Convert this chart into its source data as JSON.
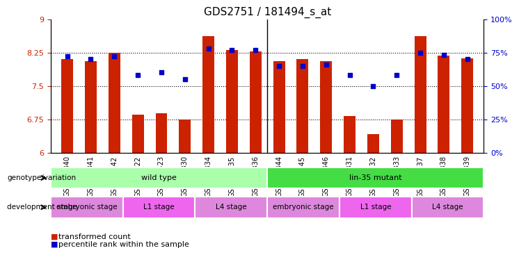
{
  "title": "GDS2751 / 181494_s_at",
  "samples": [
    "GSM147340",
    "GSM147341",
    "GSM147342",
    "GSM146422",
    "GSM146423",
    "GSM147330",
    "GSM147334",
    "GSM147335",
    "GSM147336",
    "GSM147344",
    "GSM147345",
    "GSM147346",
    "GSM147331",
    "GSM147332",
    "GSM147333",
    "GSM147337",
    "GSM147338",
    "GSM147339"
  ],
  "bar_values": [
    8.1,
    8.05,
    8.25,
    6.85,
    6.88,
    6.75,
    8.62,
    8.3,
    8.28,
    8.05,
    8.1,
    8.05,
    6.82,
    6.42,
    6.75,
    8.62,
    8.18,
    8.12
  ],
  "percentile_values": [
    72,
    70,
    72,
    58,
    60,
    55,
    78,
    77,
    77,
    65,
    65,
    66,
    58,
    50,
    58,
    75,
    73,
    70
  ],
  "ymin": 6,
  "ymax": 9,
  "yticks": [
    6,
    6.75,
    7.5,
    8.25,
    9
  ],
  "right_yticks": [
    0,
    25,
    50,
    75,
    100
  ],
  "bar_color": "#cc2200",
  "scatter_color": "#0000cc",
  "background_color": "#ffffff",
  "grid_color": "#000000",
  "groups": {
    "genotype": [
      {
        "label": "wild type",
        "start": 0,
        "end": 9,
        "color": "#aaffaa"
      },
      {
        "label": "lin-35 mutant",
        "start": 9,
        "end": 18,
        "color": "#44dd44"
      }
    ],
    "stage": [
      {
        "label": "embryonic stage",
        "start": 0,
        "end": 3,
        "color": "#dd88dd"
      },
      {
        "label": "L1 stage",
        "start": 3,
        "end": 6,
        "color": "#ee66ee"
      },
      {
        "label": "L4 stage",
        "start": 6,
        "end": 9,
        "color": "#dd88dd"
      },
      {
        "label": "embryonic stage",
        "start": 9,
        "end": 12,
        "color": "#dd88dd"
      },
      {
        "label": "L1 stage",
        "start": 12,
        "end": 15,
        "color": "#ee66ee"
      },
      {
        "label": "L4 stage",
        "start": 15,
        "end": 18,
        "color": "#dd88dd"
      }
    ]
  },
  "legend": [
    {
      "label": "transformed count",
      "color": "#cc2200"
    },
    {
      "label": "percentile rank within the sample",
      "color": "#0000cc"
    }
  ]
}
